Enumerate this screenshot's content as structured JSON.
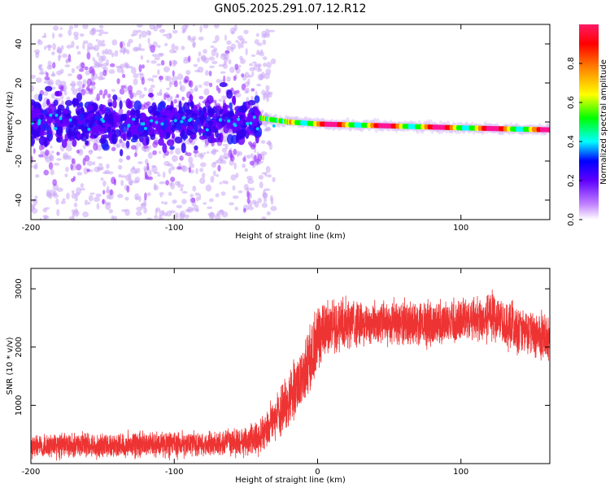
{
  "title": "GN05.2025.291.07.12.R12",
  "chart_data": [
    {
      "type": "heatmap",
      "title": "GN05.2025.291.07.12.R12",
      "xlabel": "Height of straight line (km)",
      "ylabel": "Frequency (Hz)",
      "xlim": [
        -200,
        162
      ],
      "ylim": [
        -50,
        50
      ],
      "xticks": [
        -200,
        -100,
        0,
        100
      ],
      "yticks": [
        -40,
        -20,
        0,
        20,
        40
      ],
      "xtick_labels": [
        "-200",
        "-100",
        "0",
        "100"
      ],
      "ytick_labels": [
        "-40",
        "-20",
        "0",
        "20",
        "40"
      ],
      "colorbar": {
        "label": "Normalized spectral amplitude",
        "range": [
          0,
          1
        ],
        "ticks": [
          0.0,
          0.2,
          0.4,
          0.6,
          0.8
        ],
        "tick_labels": [
          "0.0",
          "0.2",
          "0.4",
          "0.6",
          "0.8"
        ],
        "colors": [
          "#ffffff",
          "#9b30ff",
          "#0000ff",
          "#00ffff",
          "#00ff00",
          "#ffff00",
          "#ff8000",
          "#ff0000",
          "#ff1493"
        ]
      },
      "features": [
        {
          "name": "broad noisy band",
          "x_range": [
            -200,
            -40
          ],
          "center_freq": 0,
          "half_width": 5,
          "scatter_half_width": 50
        },
        {
          "name": "narrow carrier line",
          "x_range": [
            -40,
            162
          ],
          "freq_points": [
            [
              -40,
              2
            ],
            [
              -20,
              0
            ],
            [
              0,
              -1
            ],
            [
              50,
              -2
            ],
            [
              100,
              -3
            ],
            [
              162,
              -4
            ]
          ],
          "half_width": 1.5
        }
      ]
    },
    {
      "type": "line",
      "xlabel": "Height of straight line (km)",
      "ylabel": "SNR (10 * v/v)",
      "xlim": [
        -200,
        162
      ],
      "ylim": [
        0,
        3350
      ],
      "xticks": [
        -200,
        -100,
        0,
        100
      ],
      "yticks": [
        1000,
        2000,
        3000
      ],
      "xtick_labels": [
        "-200",
        "-100",
        "0",
        "100"
      ],
      "ytick_labels": [
        "1000",
        "2000",
        "3000"
      ],
      "line_color": "#ee3333",
      "trend": {
        "x": [
          -200,
          -150,
          -100,
          -70,
          -50,
          -40,
          -30,
          -20,
          -10,
          0,
          5,
          20,
          50,
          80,
          100,
          120,
          140,
          162
        ],
        "mean": [
          300,
          320,
          330,
          340,
          380,
          480,
          750,
          1100,
          1500,
          2050,
          2300,
          2450,
          2400,
          2400,
          2450,
          2550,
          2300,
          2150
        ],
        "spread": [
          250,
          250,
          250,
          250,
          300,
          350,
          450,
          550,
          650,
          700,
          600,
          500,
          450,
          450,
          450,
          500,
          500,
          450
        ]
      }
    }
  ]
}
